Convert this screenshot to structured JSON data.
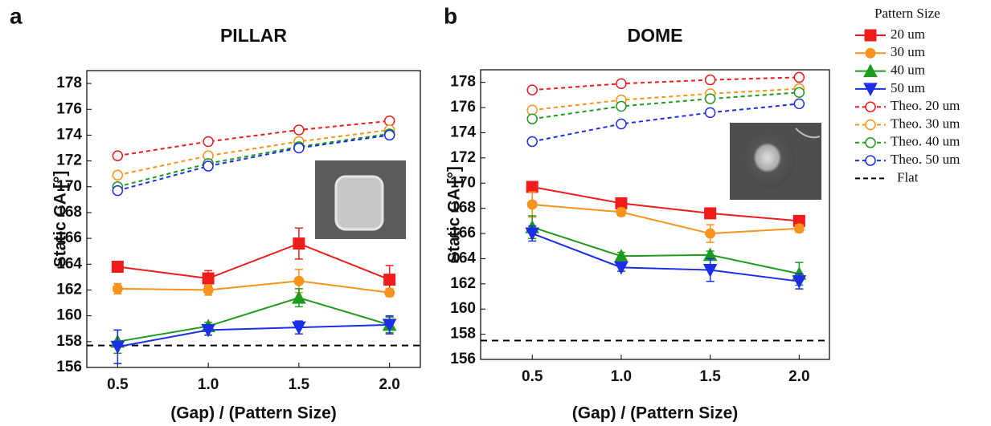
{
  "chart_data": [
    {
      "type": "line",
      "label": "a",
      "title": "PILLAR",
      "x_label": "(Gap) / (Pattern Size)",
      "y_label": "Static CA [°]",
      "legend_title": "Pattern Size",
      "x": [
        0.5,
        1,
        1.5,
        2
      ],
      "xlim": [
        0.33,
        2.17
      ],
      "xticks": [
        0.5,
        {
          "value": 1,
          "label": "1.0"
        },
        1.5,
        {
          "value": 2,
          "label": "2.0"
        }
      ],
      "ylim": [
        156,
        179
      ],
      "yticks": [
        156,
        158,
        160,
        162,
        164,
        166,
        168,
        170,
        172,
        174,
        176,
        178
      ],
      "series": [
        {
          "name": "20 um",
          "color": "#ee1c1c",
          "marker": "square",
          "filled": true,
          "dashed": false,
          "values": [
            163.8,
            162.9,
            165.6,
            162.8
          ],
          "errors": [
            0.3,
            0.6,
            1.2,
            1.1
          ]
        },
        {
          "name": "30 um",
          "color": "#f7941d",
          "marker": "circle",
          "filled": true,
          "dashed": false,
          "values": [
            162.1,
            162.0,
            162.7,
            161.8
          ],
          "errors": [
            0.4,
            0.4,
            0.9,
            0.3
          ]
        },
        {
          "name": "40 um",
          "color": "#1e9a1e",
          "marker": "triangle-up",
          "filled": true,
          "dashed": false,
          "values": [
            158.0,
            159.2,
            161.4,
            159.3
          ],
          "errors": [
            0.9,
            0.3,
            0.7,
            0.6
          ]
        },
        {
          "name": "50 um",
          "color": "#1c2ee8",
          "marker": "triangle-down",
          "filled": true,
          "dashed": false,
          "values": [
            157.6,
            158.9,
            159.1,
            159.3
          ],
          "errors": [
            1.3,
            0.4,
            0.5,
            0.7
          ]
        },
        {
          "name": "Theo. 20 um",
          "color": "#ee1c1c",
          "marker": "circle",
          "filled": false,
          "dashed": true,
          "values": [
            172.4,
            173.5,
            174.4,
            175.1
          ]
        },
        {
          "name": "Theo. 30 um",
          "color": "#f7941d",
          "marker": "circle",
          "filled": false,
          "dashed": true,
          "values": [
            170.9,
            172.4,
            173.5,
            174.4
          ]
        },
        {
          "name": "Theo. 40 um",
          "color": "#1e9a1e",
          "marker": "circle",
          "filled": false,
          "dashed": true,
          "values": [
            170.0,
            171.8,
            173.1,
            174.1
          ]
        },
        {
          "name": "Theo. 50 um",
          "color": "#1c2ee8",
          "marker": "circle",
          "filled": false,
          "dashed": true,
          "values": [
            169.7,
            171.6,
            173.0,
            174.0
          ]
        }
      ],
      "reference_lines": [
        {
          "name": "Flat",
          "value": 157.7,
          "color": "#000000"
        }
      ]
    },
    {
      "type": "line",
      "label": "b",
      "title": "DOME",
      "x_label": "(Gap) / (Pattern Size)",
      "y_label": "Static CA [°]",
      "x": [
        0.5,
        1,
        1.5,
        2
      ],
      "xlim": [
        0.21,
        2.17
      ],
      "xticks": [
        0.5,
        {
          "value": 1,
          "label": "1.0"
        },
        1.5,
        {
          "value": 2,
          "label": "2.0"
        }
      ],
      "ylim": [
        156,
        179
      ],
      "yticks": [
        156,
        158,
        160,
        162,
        164,
        166,
        168,
        170,
        172,
        174,
        176,
        178
      ],
      "series": [
        {
          "name": "20 um",
          "color": "#ee1c1c",
          "marker": "square",
          "filled": true,
          "dashed": false,
          "values": [
            169.7,
            168.4,
            167.6,
            167.0
          ],
          "errors": [
            0.3,
            0.3,
            0.3,
            0.4
          ]
        },
        {
          "name": "30 um",
          "color": "#f7941d",
          "marker": "circle",
          "filled": true,
          "dashed": false,
          "values": [
            168.3,
            167.7,
            166.0,
            166.4
          ],
          "errors": [
            1.0,
            0.3,
            0.7,
            0.3
          ]
        },
        {
          "name": "40 um",
          "color": "#1e9a1e",
          "marker": "triangle-up",
          "filled": true,
          "dashed": false,
          "values": [
            166.5,
            164.2,
            164.3,
            162.8
          ],
          "errors": [
            0.9,
            0.3,
            0.3,
            0.9
          ]
        },
        {
          "name": "50 um",
          "color": "#1c2ee8",
          "marker": "triangle-down",
          "filled": true,
          "dashed": false,
          "values": [
            166.0,
            163.3,
            163.1,
            162.2
          ],
          "errors": [
            0.6,
            0.3,
            0.9,
            0.6
          ]
        },
        {
          "name": "Theo. 20 um",
          "color": "#ee1c1c",
          "marker": "circle",
          "filled": false,
          "dashed": true,
          "values": [
            177.4,
            177.9,
            178.2,
            178.4
          ]
        },
        {
          "name": "Theo. 30 um",
          "color": "#f7941d",
          "marker": "circle",
          "filled": false,
          "dashed": true,
          "values": [
            175.8,
            176.6,
            177.1,
            177.5
          ]
        },
        {
          "name": "Theo. 40 um",
          "color": "#1e9a1e",
          "marker": "circle",
          "filled": false,
          "dashed": true,
          "values": [
            175.1,
            176.1,
            176.7,
            177.2
          ]
        },
        {
          "name": "Theo. 50 um",
          "color": "#1c2ee8",
          "marker": "circle",
          "filled": false,
          "dashed": true,
          "values": [
            173.3,
            174.7,
            175.6,
            176.3
          ]
        }
      ],
      "reference_lines": [
        {
          "name": "Flat",
          "value": 157.5,
          "color": "#000000"
        }
      ]
    }
  ]
}
